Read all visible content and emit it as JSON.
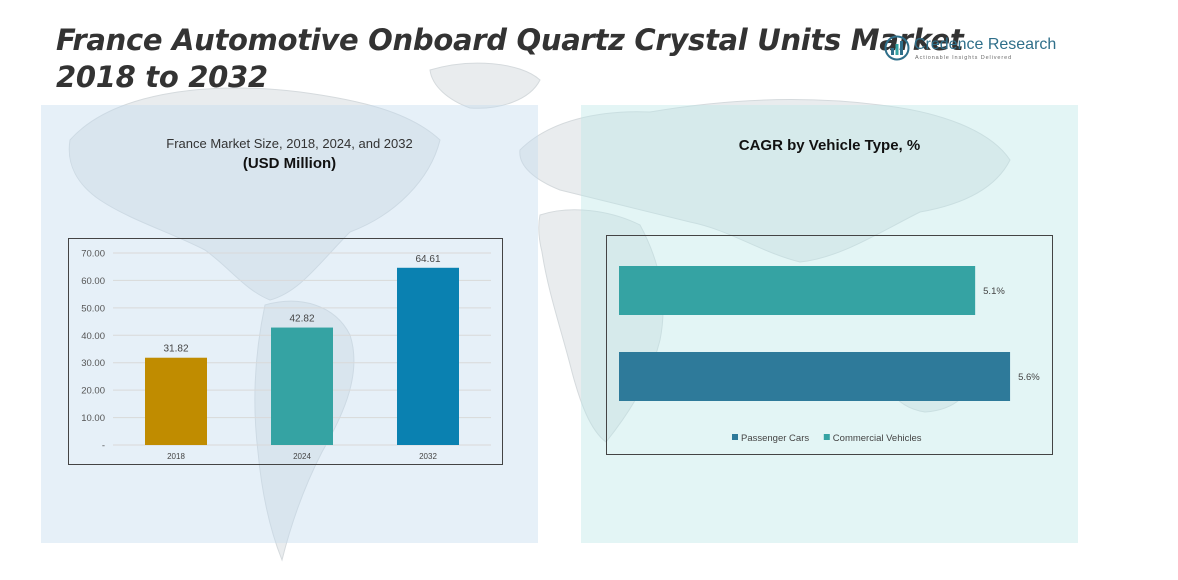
{
  "header": {
    "title_line1": "France Automotive Onboard Quartz Crystal Units Market",
    "title_line2": "2018 to 2032"
  },
  "brand": {
    "name": "Credence Research",
    "tagline": "Actionable Insights Delivered",
    "icon": "bar-chart-circle-icon",
    "color": "#2f6f8a"
  },
  "chart_data": [
    {
      "type": "bar",
      "subtitle": "France Market Size, 2018, 2024, and 2032",
      "unit_label": "(USD Million)",
      "categories": [
        "2018",
        "2024",
        "2032"
      ],
      "values": [
        31.82,
        42.82,
        64.61
      ],
      "value_labels": [
        "31.82",
        "42.82",
        "64.61"
      ],
      "colors": [
        "#c08c00",
        "#35a3a3",
        "#0a81b1"
      ],
      "ylim": [
        0,
        70
      ],
      "yticks": [
        0,
        10,
        20,
        30,
        40,
        50,
        60,
        70
      ],
      "ytick_labels": [
        "-",
        "10.00",
        "20.00",
        "30.00",
        "40.00",
        "50.00",
        "60.00",
        "70.00"
      ],
      "grid": true,
      "legend": "none"
    },
    {
      "type": "bar",
      "orientation": "horizontal",
      "title": "CAGR by Vehicle Type, %",
      "categories": [
        "Commercial Vehicles",
        "Passenger Cars"
      ],
      "values": [
        5.1,
        5.6
      ],
      "value_labels": [
        "5.1%",
        "5.6%"
      ],
      "colors": [
        "#35a3a3",
        "#2e7a9a"
      ],
      "xlim": [
        0,
        6
      ],
      "grid": false,
      "legend": "bottom",
      "legend_entries": [
        {
          "name": "Passenger Cars",
          "color": "#2e7a9a"
        },
        {
          "name": "Commercial Vehicles",
          "color": "#35a3a3"
        }
      ]
    }
  ]
}
